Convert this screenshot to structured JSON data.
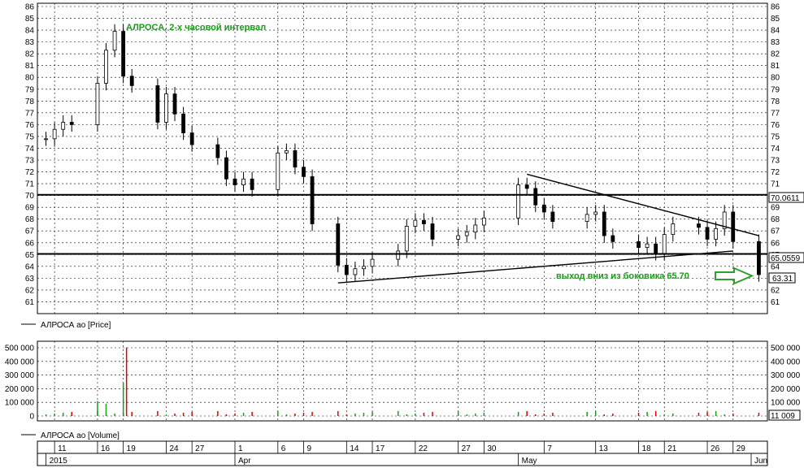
{
  "chart_data": [
    {
      "type": "candlestick",
      "title": "АЛРОСА, 2-х часовой интервал",
      "legend": "АЛРОСА ао [Price]",
      "ylim": [
        60,
        86
      ],
      "yticks": [
        61,
        62,
        63,
        64,
        65,
        66,
        67,
        68,
        69,
        70,
        71,
        72,
        73,
        74,
        75,
        76,
        77,
        78,
        79,
        80,
        81,
        82,
        83,
        84,
        85,
        86
      ],
      "grid": true,
      "annotation": "выход вниз из боковика 65.70",
      "levels": [
        {
          "name": "resistance",
          "value": 70.0611,
          "label": "70.0611"
        },
        {
          "name": "support",
          "value": 65.0559,
          "label": "65.0559"
        }
      ],
      "last_price": 63.31,
      "last_price_label": "63.31",
      "trendlines": [
        {
          "name": "descending",
          "from": {
            "date": "2015-05-05",
            "y": 71.8
          },
          "to": {
            "date": "2015-06-01",
            "y": 66.6
          }
        },
        {
          "name": "ascending",
          "from": {
            "date": "2015-04-13",
            "y": 62.6
          },
          "to": {
            "date": "2015-05-29",
            "y": 65.3
          }
        }
      ],
      "x_dates": [
        "2015-03-10",
        "2015-03-11",
        "2015-03-12",
        "2015-03-13",
        "2015-03-16",
        "2015-03-17",
        "2015-03-18",
        "2015-03-19",
        "2015-03-20",
        "2015-03-23",
        "2015-03-24",
        "2015-03-25",
        "2015-03-26",
        "2015-03-27",
        "2015-03-30",
        "2015-03-31",
        "2015-04-01",
        "2015-04-02",
        "2015-04-03",
        "2015-04-06",
        "2015-04-07",
        "2015-04-08",
        "2015-04-09",
        "2015-04-10",
        "2015-04-13",
        "2015-04-14",
        "2015-04-15",
        "2015-04-16",
        "2015-04-17",
        "2015-04-20",
        "2015-04-21",
        "2015-04-22",
        "2015-04-23",
        "2015-04-24",
        "2015-04-27",
        "2015-04-28",
        "2015-04-29",
        "2015-04-30",
        "2015-05-04",
        "2015-05-05",
        "2015-05-06",
        "2015-05-07",
        "2015-05-08",
        "2015-05-12",
        "2015-05-13",
        "2015-05-14",
        "2015-05-15",
        "2015-05-18",
        "2015-05-19",
        "2015-05-20",
        "2015-05-21",
        "2015-05-22",
        "2015-05-25",
        "2015-05-26",
        "2015-05-27",
        "2015-05-28",
        "2015-05-29",
        "2015-06-01"
      ],
      "close": [
        74.8,
        75.6,
        76.2,
        76.0,
        79.5,
        82.3,
        83.9,
        80.1,
        79.3,
        76.2,
        78.6,
        76.9,
        75.3,
        74.3,
        73.2,
        71.4,
        70.9,
        71.4,
        70.5,
        73.6,
        73.8,
        72.4,
        71.6,
        67.6,
        64.1,
        63.3,
        63.8,
        64.0,
        64.6,
        65.3,
        67.4,
        67.9,
        67.6,
        66.3,
        66.6,
        66.9,
        67.5,
        68.1,
        70.9,
        70.6,
        69.2,
        68.6,
        67.8,
        68.4,
        68.6,
        66.6,
        66.1,
        65.6,
        65.9,
        65.1,
        66.7,
        67.6,
        67.3,
        66.3,
        67.2,
        68.6,
        66.1,
        63.3
      ]
    },
    {
      "type": "bar",
      "legend": "АЛРОСА ао [Volume]",
      "ylim": [
        0,
        500000
      ],
      "yticks": [
        "0",
        "100 000",
        "200 000",
        "300 000",
        "400 000",
        "500 000"
      ],
      "yticks_values": [
        0,
        100000,
        200000,
        300000,
        400000,
        500000
      ],
      "spikes": [
        {
          "date": "2015-03-19",
          "value": 502000
        },
        {
          "date": "2015-03-19",
          "value": 245000
        },
        {
          "date": "2015-03-17",
          "value": 90000
        },
        {
          "date": "2015-03-16",
          "value": 110000
        }
      ],
      "last_volume": 11009,
      "last_volume_label": "11 009"
    }
  ],
  "time_axis": {
    "days": [
      {
        "date": "2015-03-11",
        "label": "11"
      },
      {
        "date": "2015-03-16",
        "label": "16"
      },
      {
        "date": "2015-03-19",
        "label": "19"
      },
      {
        "date": "2015-03-24",
        "label": "24"
      },
      {
        "date": "2015-03-27",
        "label": "27"
      },
      {
        "date": "2015-04-01",
        "label": "1"
      },
      {
        "date": "2015-04-06",
        "label": "6"
      },
      {
        "date": "2015-04-09",
        "label": "9"
      },
      {
        "date": "2015-04-14",
        "label": "14"
      },
      {
        "date": "2015-04-17",
        "label": "17"
      },
      {
        "date": "2015-04-22",
        "label": "22"
      },
      {
        "date": "2015-04-27",
        "label": "27"
      },
      {
        "date": "2015-04-30",
        "label": "30"
      },
      {
        "date": "2015-05-07",
        "label": "7"
      },
      {
        "date": "2015-05-13",
        "label": "13"
      },
      {
        "date": "2015-05-18",
        "label": "18"
      },
      {
        "date": "2015-05-21",
        "label": "21"
      },
      {
        "date": "2015-05-26",
        "label": "26"
      },
      {
        "date": "2015-05-29",
        "label": "29"
      }
    ],
    "periods": [
      {
        "date": "2015-03-10",
        "label": "2015"
      },
      {
        "date": "2015-04-01",
        "label": "Apr"
      },
      {
        "date": "2015-05-04",
        "label": "May"
      },
      {
        "date": "2015-06-01",
        "label": "Jun"
      }
    ]
  },
  "colors": {
    "annotation_green": "#1a9b1a",
    "arrow_green": "#2e9e2e",
    "volume_spike_red": "#e00000",
    "volume_bar_green": "#1a9b1a",
    "volume_bar_red": "#e00000",
    "grid": "#000000"
  }
}
